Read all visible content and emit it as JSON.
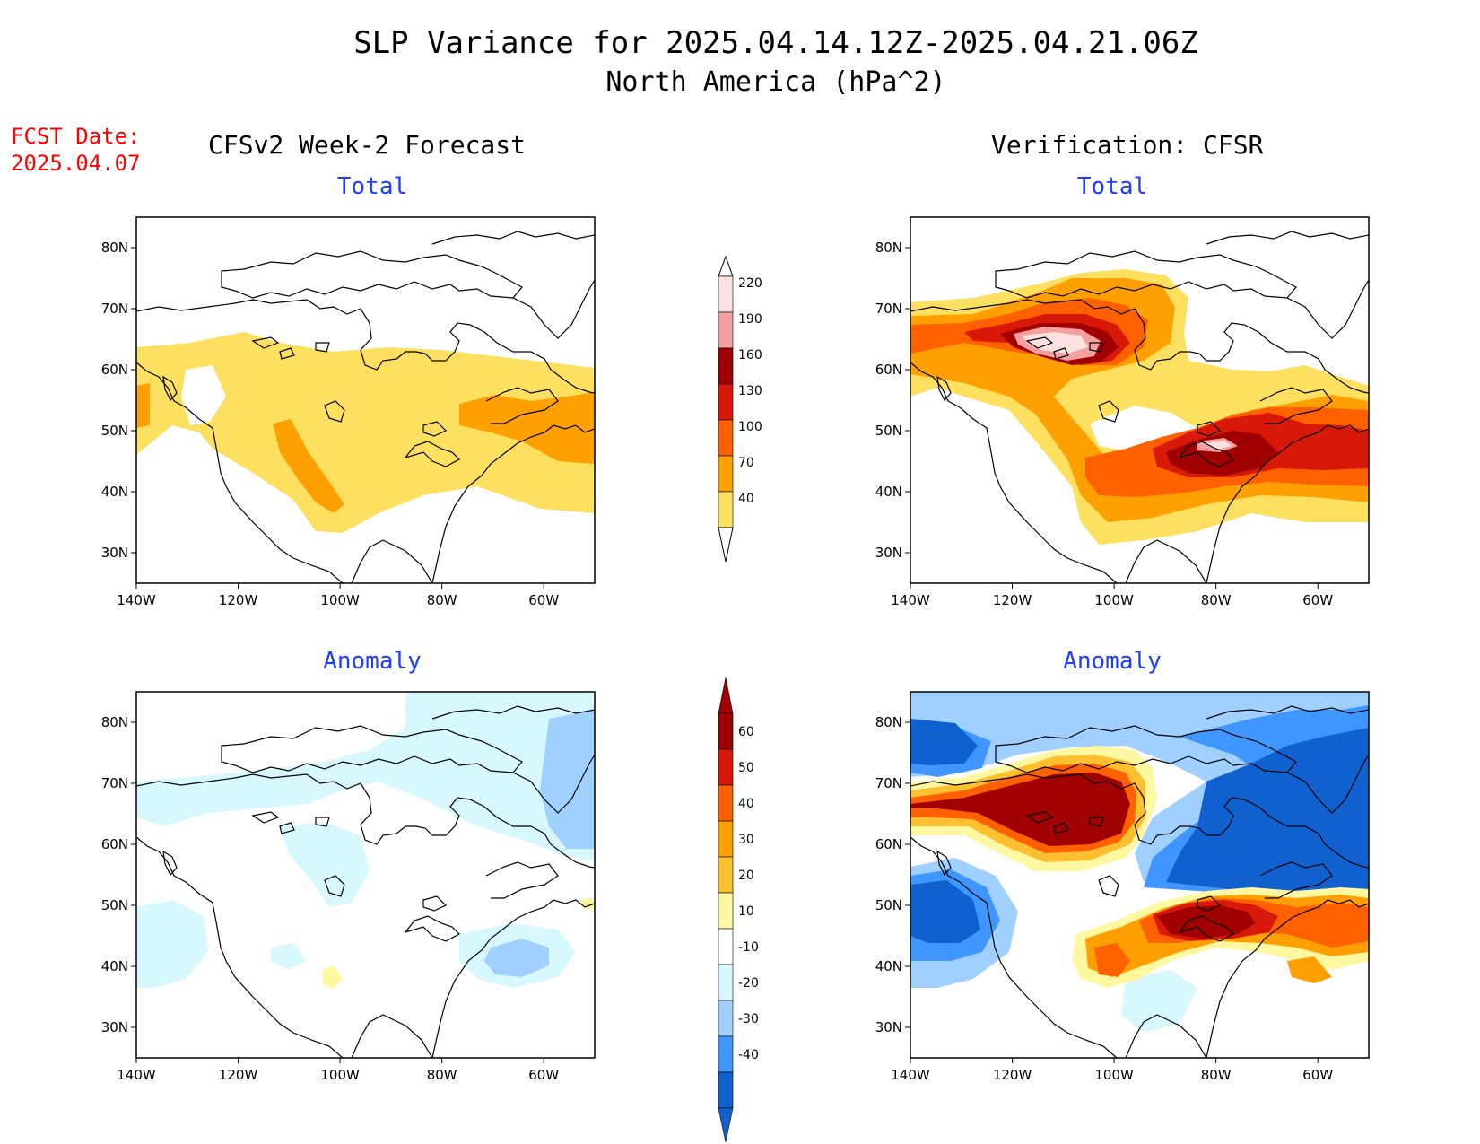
{
  "title": {
    "line1": "SLP Variance for 2025.04.14.12Z-2025.04.21.06Z",
    "line2": "North America (hPa^2)"
  },
  "fcst": {
    "label": "FCST Date:",
    "date": "2025.04.07"
  },
  "columns": {
    "left": "CFSv2 Week-2 Forecast",
    "right": "Verification: CFSR"
  },
  "panels": {
    "tl": "Total",
    "tr": "Total",
    "bl": "Anomaly",
    "br": "Anomaly"
  },
  "axes": {
    "lat_labels": [
      "80N",
      "70N",
      "60N",
      "50N",
      "40N",
      "30N"
    ],
    "lon_labels": [
      "140W",
      "120W",
      "100W",
      "80W",
      "60W"
    ]
  },
  "colorbar_total": {
    "labels": [
      "220",
      "190",
      "160",
      "130",
      "100",
      "70",
      "40"
    ],
    "colors": [
      "#fde0e0",
      "#f2a0a0",
      "#a00000",
      "#d81808",
      "#ff6000",
      "#ffa000",
      "#fde060"
    ]
  },
  "colorbar_anomaly": {
    "labels": [
      "60",
      "50",
      "40",
      "30",
      "20",
      "10",
      "-10",
      "-20",
      "-30",
      "-40"
    ],
    "colors": [
      "#a00000",
      "#d81808",
      "#ff6000",
      "#ffa000",
      "#ffc030",
      "#fff8a0",
      "#ffffff",
      "#d8f8ff",
      "#a0d0ff",
      "#4096ff",
      "#1060d0"
    ]
  }
}
